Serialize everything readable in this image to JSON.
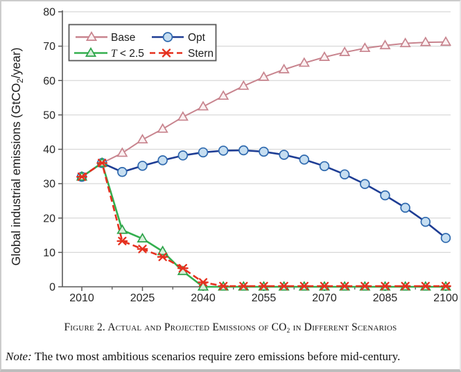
{
  "figure": {
    "caption_part1": "Figure 2. Actual and Projected Emissions of CO",
    "caption_sub": "2",
    "caption_part3": " in Different Scenarios",
    "note_label": "Note:",
    "note_text": " The two most ambitious scenarios require zero emissions before mid-century."
  },
  "chart_data": {
    "type": "line",
    "title": "",
    "ylabel_prefix": "Global industrial emissions (GtCO",
    "ylabel_sub": "2",
    "ylabel_suffix": "/year)",
    "ylim": [
      0,
      80
    ],
    "yticks": [
      0,
      10,
      20,
      30,
      40,
      50,
      60,
      70,
      80
    ],
    "xticks": [
      2010,
      2025,
      2040,
      2055,
      2070,
      2085,
      2100
    ],
    "minor_xticks": [
      2017.5,
      2032.5,
      2047.5,
      2062.5,
      2077.5,
      2092.5
    ],
    "grid": "horizontal",
    "legend_position": "top-left",
    "x": [
      2010,
      2015,
      2020,
      2025,
      2030,
      2035,
      2040,
      2045,
      2050,
      2055,
      2060,
      2065,
      2070,
      2075,
      2080,
      2085,
      2090,
      2095,
      2100
    ],
    "series": [
      {
        "name": "Base",
        "marker": "triangle",
        "line_color": "#c8848e",
        "marker_fill": "#fbf1f2",
        "marker_stroke": "#c8848e",
        "dashed": false,
        "values": [
          32,
          36,
          38.9,
          42.8,
          45.9,
          49.4,
          52.4,
          55.5,
          58.4,
          61.0,
          63.2,
          65.1,
          66.8,
          68.2,
          69.4,
          70.2,
          70.8,
          71.1,
          71.2
        ]
      },
      {
        "name": "Opt",
        "marker": "circle",
        "line_color": "#1e3d94",
        "marker_fill": "#c6def1",
        "marker_stroke": "#2e69ae",
        "dashed": false,
        "values": [
          32,
          36,
          33.4,
          35.2,
          36.8,
          38.2,
          39.1,
          39.6,
          39.7,
          39.3,
          38.4,
          37.0,
          35.1,
          32.7,
          29.9,
          26.6,
          23.0,
          18.9,
          14.2
        ]
      },
      {
        "name": "T < 2.5",
        "italic_prefix": "T",
        "rest_label": " < 2.5",
        "marker": "triangle",
        "line_color": "#33af4e",
        "marker_fill": "#d8efdb",
        "marker_stroke": "#2da34a",
        "dashed": false,
        "values": [
          32,
          36,
          16.5,
          14.0,
          10.3,
          4.5,
          0,
          0,
          0,
          0,
          0,
          0,
          0,
          0,
          0,
          0,
          0,
          0,
          0
        ]
      },
      {
        "name": "Stern",
        "marker": "star",
        "line_color": "#e5311f",
        "marker_fill": "#e5311f",
        "marker_stroke": "#e5311f",
        "dashed": true,
        "values": [
          32,
          36,
          13.3,
          11.0,
          8.7,
          5.4,
          1.3,
          0.2,
          0.2,
          0.2,
          0.2,
          0.2,
          0.2,
          0.2,
          0.2,
          0.2,
          0.2,
          0.2,
          0.2
        ]
      }
    ],
    "colors": {
      "grid": "#d8d8d8",
      "axis": "#595959",
      "tick_text": "#262626"
    }
  }
}
